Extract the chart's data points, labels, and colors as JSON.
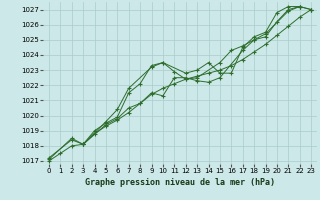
{
  "title": "Graphe pression niveau de la mer (hPa)",
  "bg_color": "#cce8e8",
  "grid_color": "#aacccc",
  "line_color": "#2d6e2d",
  "marker_color": "#2d6e2d",
  "xlim": [
    -0.5,
    23.5
  ],
  "ylim": [
    1016.8,
    1027.5
  ],
  "xticks": [
    0,
    1,
    2,
    3,
    4,
    5,
    6,
    7,
    8,
    9,
    10,
    11,
    12,
    13,
    14,
    15,
    16,
    17,
    18,
    19,
    20,
    21,
    22,
    23
  ],
  "yticks": [
    1017,
    1018,
    1019,
    1020,
    1021,
    1022,
    1023,
    1024,
    1025,
    1026,
    1027
  ],
  "series": [
    {
      "x": [
        0,
        2,
        3,
        5,
        6,
        7,
        8,
        9,
        10,
        11,
        12,
        13,
        14,
        15,
        17,
        18,
        19,
        20,
        21,
        22,
        23
      ],
      "y": [
        1017.1,
        1018.5,
        1018.1,
        1019.4,
        1019.8,
        1020.5,
        1020.8,
        1021.5,
        1021.3,
        1022.5,
        1022.5,
        1022.3,
        1022.2,
        1022.5,
        1024.3,
        1025.0,
        1025.2,
        1026.2,
        1027.0,
        1027.2,
        1027.0
      ]
    },
    {
      "x": [
        0,
        1,
        2,
        3,
        4,
        5,
        6,
        7,
        8,
        9,
        10,
        11,
        12,
        13,
        14,
        15,
        16,
        17,
        18,
        19,
        20,
        21,
        22,
        23
      ],
      "y": [
        1017.0,
        1017.5,
        1018.0,
        1018.1,
        1018.8,
        1019.3,
        1019.7,
        1020.2,
        1020.8,
        1021.4,
        1021.8,
        1022.1,
        1022.4,
        1022.6,
        1022.8,
        1023.0,
        1023.3,
        1023.7,
        1024.2,
        1024.7,
        1025.3,
        1025.9,
        1026.5,
        1027.0
      ]
    },
    {
      "x": [
        3,
        5,
        6,
        7,
        9,
        10,
        11,
        12,
        13,
        15,
        16,
        17,
        18,
        19,
        21,
        22
      ],
      "y": [
        1018.1,
        1019.6,
        1020.4,
        1021.8,
        1023.2,
        1023.5,
        1022.9,
        1022.4,
        1022.5,
        1023.5,
        1024.3,
        1024.6,
        1025.0,
        1025.4,
        1026.9,
        1027.2
      ]
    },
    {
      "x": [
        0,
        2,
        3,
        4,
        5,
        6,
        7,
        8,
        9,
        10,
        12,
        13,
        14,
        15,
        16,
        17,
        18,
        19,
        20,
        21,
        22,
        23
      ],
      "y": [
        1017.2,
        1018.4,
        1018.1,
        1019.0,
        1019.5,
        1019.9,
        1021.5,
        1022.1,
        1023.3,
        1023.5,
        1022.8,
        1023.0,
        1023.5,
        1022.8,
        1022.8,
        1024.5,
        1025.2,
        1025.5,
        1026.8,
        1027.2,
        1027.2,
        1027.0
      ]
    }
  ]
}
